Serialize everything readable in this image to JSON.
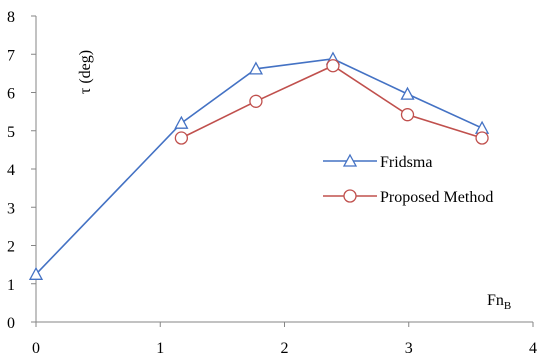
{
  "chart_data": {
    "type": "line",
    "xlim": [
      0,
      4
    ],
    "ylim": [
      0,
      8
    ],
    "x_ticks": [
      0,
      1,
      2,
      3,
      4
    ],
    "y_ticks": [
      0,
      1,
      2,
      3,
      4,
      5,
      6,
      7,
      8
    ],
    "x_ticks_text": [
      "0",
      "1",
      "2",
      "3",
      "4"
    ],
    "y_ticks_text": [
      "0",
      "1",
      "2",
      "3",
      "4",
      "5",
      "6",
      "7",
      "8"
    ],
    "ylabel": "τ (deg)",
    "xlabel_main": "Fn",
    "xlabel_sub": "B",
    "grid": false,
    "legend_position": "right",
    "series": [
      {
        "name": "Fridsma",
        "color": "#4472C4",
        "marker": "triangle",
        "x": [
          0.0,
          1.17,
          1.77,
          2.39,
          2.99,
          3.59
        ],
        "y": [
          1.25,
          5.2,
          6.62,
          6.88,
          5.96,
          5.07
        ]
      },
      {
        "name": "Proposed Method",
        "color": "#C0504D",
        "marker": "circle",
        "x": [
          1.17,
          1.77,
          2.39,
          2.99,
          3.59
        ],
        "y": [
          4.81,
          5.77,
          6.7,
          5.42,
          4.81
        ]
      }
    ]
  }
}
